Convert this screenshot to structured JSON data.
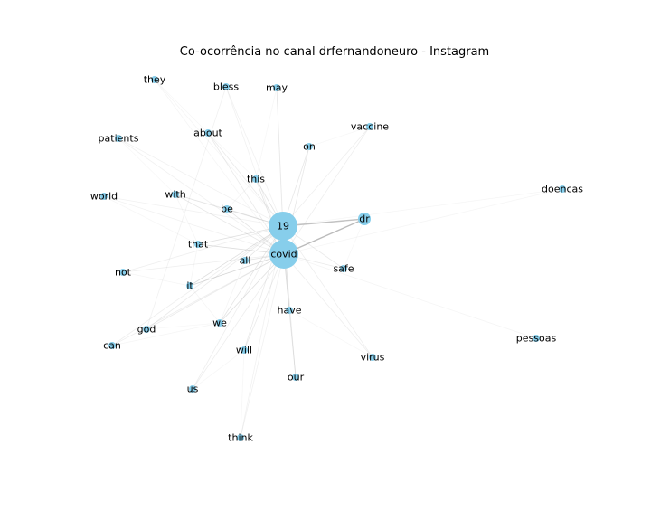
{
  "title": "Co-ocorrência no canal drfernandoneuro - Instagram",
  "colors": {
    "node": "#87ceeb",
    "edge": "#bbbbbb",
    "label": "#000000"
  },
  "graph": {
    "nodes": [
      {
        "id": "19",
        "label": "19",
        "weight": 5
      },
      {
        "id": "covid",
        "label": "covid",
        "weight": 5
      },
      {
        "id": "dr",
        "label": "dr",
        "weight": 2
      },
      {
        "id": "this",
        "label": "this",
        "weight": 1
      },
      {
        "id": "on",
        "label": "on",
        "weight": 1
      },
      {
        "id": "about",
        "label": "about",
        "weight": 1
      },
      {
        "id": "be",
        "label": "be",
        "weight": 1
      },
      {
        "id": "with",
        "label": "with",
        "weight": 1
      },
      {
        "id": "that",
        "label": "that",
        "weight": 1
      },
      {
        "id": "all",
        "label": "all",
        "weight": 1
      },
      {
        "id": "it",
        "label": "it",
        "weight": 1
      },
      {
        "id": "we",
        "label": "we",
        "weight": 1
      },
      {
        "id": "have",
        "label": "have",
        "weight": 1
      },
      {
        "id": "god",
        "label": "god",
        "weight": 1
      },
      {
        "id": "not",
        "label": "not",
        "weight": 1
      },
      {
        "id": "can",
        "label": "can",
        "weight": 1
      },
      {
        "id": "will",
        "label": "will",
        "weight": 1
      },
      {
        "id": "our",
        "label": "our",
        "weight": 1
      },
      {
        "id": "us",
        "label": "us",
        "weight": 1
      },
      {
        "id": "think",
        "label": "think",
        "weight": 1
      },
      {
        "id": "virus",
        "label": "virus",
        "weight": 1
      },
      {
        "id": "safe",
        "label": "safe",
        "weight": 1
      },
      {
        "id": "pessoas",
        "label": "pessoas",
        "weight": 1
      },
      {
        "id": "doencas",
        "label": "doencas",
        "weight": 1
      },
      {
        "id": "vaccine",
        "label": "vaccine",
        "weight": 1
      },
      {
        "id": "may",
        "label": "may",
        "weight": 1
      },
      {
        "id": "bless",
        "label": "bless",
        "weight": 1
      },
      {
        "id": "they",
        "label": "they",
        "weight": 1
      },
      {
        "id": "patients",
        "label": "patients",
        "weight": 1
      },
      {
        "id": "world",
        "label": "world",
        "weight": 1
      }
    ],
    "edges": [
      {
        "source": "covid",
        "target": "dr",
        "strength": 1.0
      },
      {
        "source": "19",
        "target": "dr",
        "strength": 0.9
      },
      {
        "source": "19",
        "target": "covid",
        "strength": 1.0
      },
      {
        "source": "covid",
        "target": "it",
        "strength": 0.6
      },
      {
        "source": "19",
        "target": "it",
        "strength": 0.5
      },
      {
        "source": "covid",
        "target": "that",
        "strength": 0.5
      },
      {
        "source": "19",
        "target": "that",
        "strength": 0.45
      },
      {
        "source": "covid",
        "target": "we",
        "strength": 0.45
      },
      {
        "source": "19",
        "target": "we",
        "strength": 0.4
      },
      {
        "source": "covid",
        "target": "all",
        "strength": 0.45
      },
      {
        "source": "19",
        "target": "all",
        "strength": 0.4
      },
      {
        "source": "covid",
        "target": "be",
        "strength": 0.4
      },
      {
        "source": "19",
        "target": "be",
        "strength": 0.4
      },
      {
        "source": "covid",
        "target": "this",
        "strength": 0.4
      },
      {
        "source": "19",
        "target": "this",
        "strength": 0.4
      },
      {
        "source": "covid",
        "target": "with",
        "strength": 0.35
      },
      {
        "source": "19",
        "target": "with",
        "strength": 0.35
      },
      {
        "source": "covid",
        "target": "have",
        "strength": 0.35
      },
      {
        "source": "19",
        "target": "have",
        "strength": 0.3
      },
      {
        "source": "covid",
        "target": "on",
        "strength": 0.35
      },
      {
        "source": "19",
        "target": "on",
        "strength": 0.35
      },
      {
        "source": "covid",
        "target": "will",
        "strength": 0.3
      },
      {
        "source": "19",
        "target": "will",
        "strength": 0.3
      },
      {
        "source": "covid",
        "target": "our",
        "strength": 0.3
      },
      {
        "source": "19",
        "target": "our",
        "strength": 0.3
      },
      {
        "source": "covid",
        "target": "god",
        "strength": 0.3
      },
      {
        "source": "19",
        "target": "god",
        "strength": 0.3
      },
      {
        "source": "covid",
        "target": "about",
        "strength": 0.3
      },
      {
        "source": "19",
        "target": "about",
        "strength": 0.3
      },
      {
        "source": "covid",
        "target": "not",
        "strength": 0.25
      },
      {
        "source": "19",
        "target": "not",
        "strength": 0.25
      },
      {
        "source": "covid",
        "target": "can",
        "strength": 0.25
      },
      {
        "source": "19",
        "target": "can",
        "strength": 0.25
      },
      {
        "source": "covid",
        "target": "us",
        "strength": 0.25
      },
      {
        "source": "19",
        "target": "us",
        "strength": 0.25
      },
      {
        "source": "covid",
        "target": "think",
        "strength": 0.2
      },
      {
        "source": "19",
        "target": "think",
        "strength": 0.2
      },
      {
        "source": "covid",
        "target": "virus",
        "strength": 0.25
      },
      {
        "source": "19",
        "target": "virus",
        "strength": 0.25
      },
      {
        "source": "covid",
        "target": "safe",
        "strength": 0.3
      },
      {
        "source": "19",
        "target": "safe",
        "strength": 0.3
      },
      {
        "source": "covid",
        "target": "pessoas",
        "strength": 0.15
      },
      {
        "source": "covid",
        "target": "doencas",
        "strength": 0.15
      },
      {
        "source": "19",
        "target": "doencas",
        "strength": 0.15
      },
      {
        "source": "covid",
        "target": "vaccine",
        "strength": 0.25
      },
      {
        "source": "19",
        "target": "vaccine",
        "strength": 0.25
      },
      {
        "source": "covid",
        "target": "may",
        "strength": 0.2
      },
      {
        "source": "19",
        "target": "may",
        "strength": 0.2
      },
      {
        "source": "covid",
        "target": "bless",
        "strength": 0.2
      },
      {
        "source": "19",
        "target": "bless",
        "strength": 0.2
      },
      {
        "source": "covid",
        "target": "they",
        "strength": 0.15
      },
      {
        "source": "19",
        "target": "they",
        "strength": 0.15
      },
      {
        "source": "covid",
        "target": "patients",
        "strength": 0.2
      },
      {
        "source": "19",
        "target": "patients",
        "strength": 0.2
      },
      {
        "source": "covid",
        "target": "world",
        "strength": 0.2
      },
      {
        "source": "19",
        "target": "world",
        "strength": 0.2
      },
      {
        "source": "god",
        "target": "bless",
        "strength": 0.2
      },
      {
        "source": "we",
        "target": "can",
        "strength": 0.15
      },
      {
        "source": "it",
        "target": "not",
        "strength": 0.15
      },
      {
        "source": "that",
        "target": "with",
        "strength": 0.15
      },
      {
        "source": "all",
        "target": "we",
        "strength": 0.15
      },
      {
        "source": "be",
        "target": "this",
        "strength": 0.15
      },
      {
        "source": "it",
        "target": "we",
        "strength": 0.15
      },
      {
        "source": "that",
        "target": "it",
        "strength": 0.15
      },
      {
        "source": "will",
        "target": "us",
        "strength": 0.12
      },
      {
        "source": "our",
        "target": "have",
        "strength": 0.12
      },
      {
        "source": "about",
        "target": "this",
        "strength": 0.12
      },
      {
        "source": "with",
        "target": "be",
        "strength": 0.12
      },
      {
        "source": "god",
        "target": "we",
        "strength": 0.12
      },
      {
        "source": "think",
        "target": "will",
        "strength": 0.12
      },
      {
        "source": "patients",
        "target": "with",
        "strength": 0.12
      },
      {
        "source": "world",
        "target": "that",
        "strength": 0.12
      },
      {
        "source": "they",
        "target": "about",
        "strength": 0.12
      },
      {
        "source": "may",
        "target": "this",
        "strength": 0.12
      },
      {
        "source": "vaccine",
        "target": "on",
        "strength": 0.12
      },
      {
        "source": "safe",
        "target": "dr",
        "strength": 0.12
      },
      {
        "source": "virus",
        "target": "have",
        "strength": 0.12
      }
    ]
  }
}
